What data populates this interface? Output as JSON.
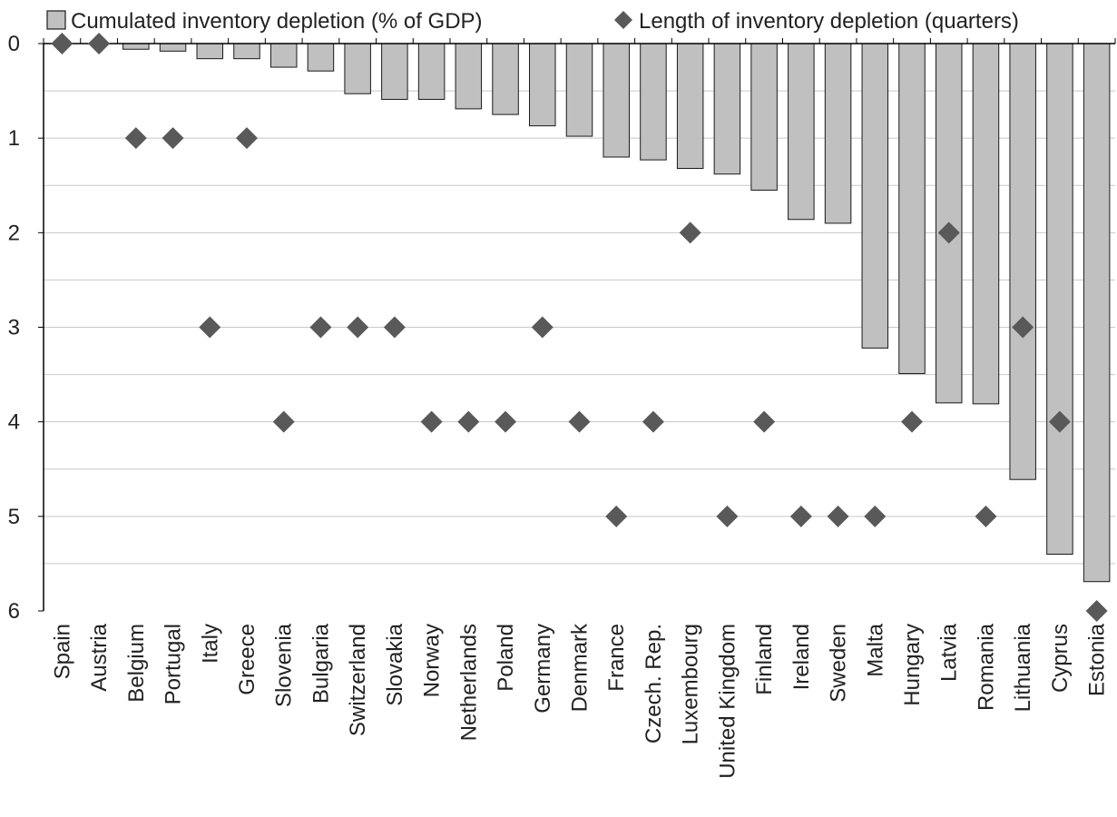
{
  "chart_data": {
    "type": "bar",
    "categories": [
      "Spain",
      "Austria",
      "Belgium",
      "Portugal",
      "Italy",
      "Greece",
      "Slovenia",
      "Bulgaria",
      "Switzerland",
      "Slovakia",
      "Norway",
      "Netherlands",
      "Poland",
      "Germany",
      "Denmark",
      "France",
      "Czech. Rep.",
      "Luxembourg",
      "United Kingdom",
      "Finland",
      "Ireland",
      "Sweden",
      "Malta",
      "Hungary",
      "Latvia",
      "Romania",
      "Lithuania",
      "Cyprus",
      "Estonia"
    ],
    "series": [
      {
        "name": "Cumulated inventory depletion (% of GDP)",
        "kind": "bar",
        "values": [
          0.0,
          0.0,
          0.06,
          0.08,
          0.16,
          0.16,
          0.25,
          0.29,
          0.53,
          0.59,
          0.59,
          0.69,
          0.75,
          0.87,
          0.98,
          1.2,
          1.23,
          1.32,
          1.38,
          1.55,
          1.86,
          1.9,
          3.22,
          3.49,
          3.8,
          3.81,
          4.61,
          5.4,
          5.69
        ]
      },
      {
        "name": "Length of inventory depletion (quarters)",
        "kind": "scatter",
        "marker": "diamond",
        "values": [
          0,
          0,
          1,
          1,
          3,
          1,
          4,
          3,
          3,
          3,
          4,
          4,
          4,
          3,
          4,
          5,
          4,
          2,
          5,
          4,
          5,
          5,
          5,
          4,
          2,
          5,
          3,
          4,
          6
        ]
      }
    ],
    "yaxis": {
      "ylim": [
        0,
        6
      ],
      "inverted": true,
      "ticks": [
        "0",
        "1",
        "2",
        "3",
        "4",
        "5",
        "6"
      ],
      "minor_step": 0.5
    },
    "grid": true,
    "legend": "top",
    "colors": {
      "bar_fill": "#c0c0c0",
      "bar_stroke": "#1a1a1a",
      "marker": "#595959",
      "grid": "#c8c8c8",
      "axis": "#000000"
    }
  }
}
